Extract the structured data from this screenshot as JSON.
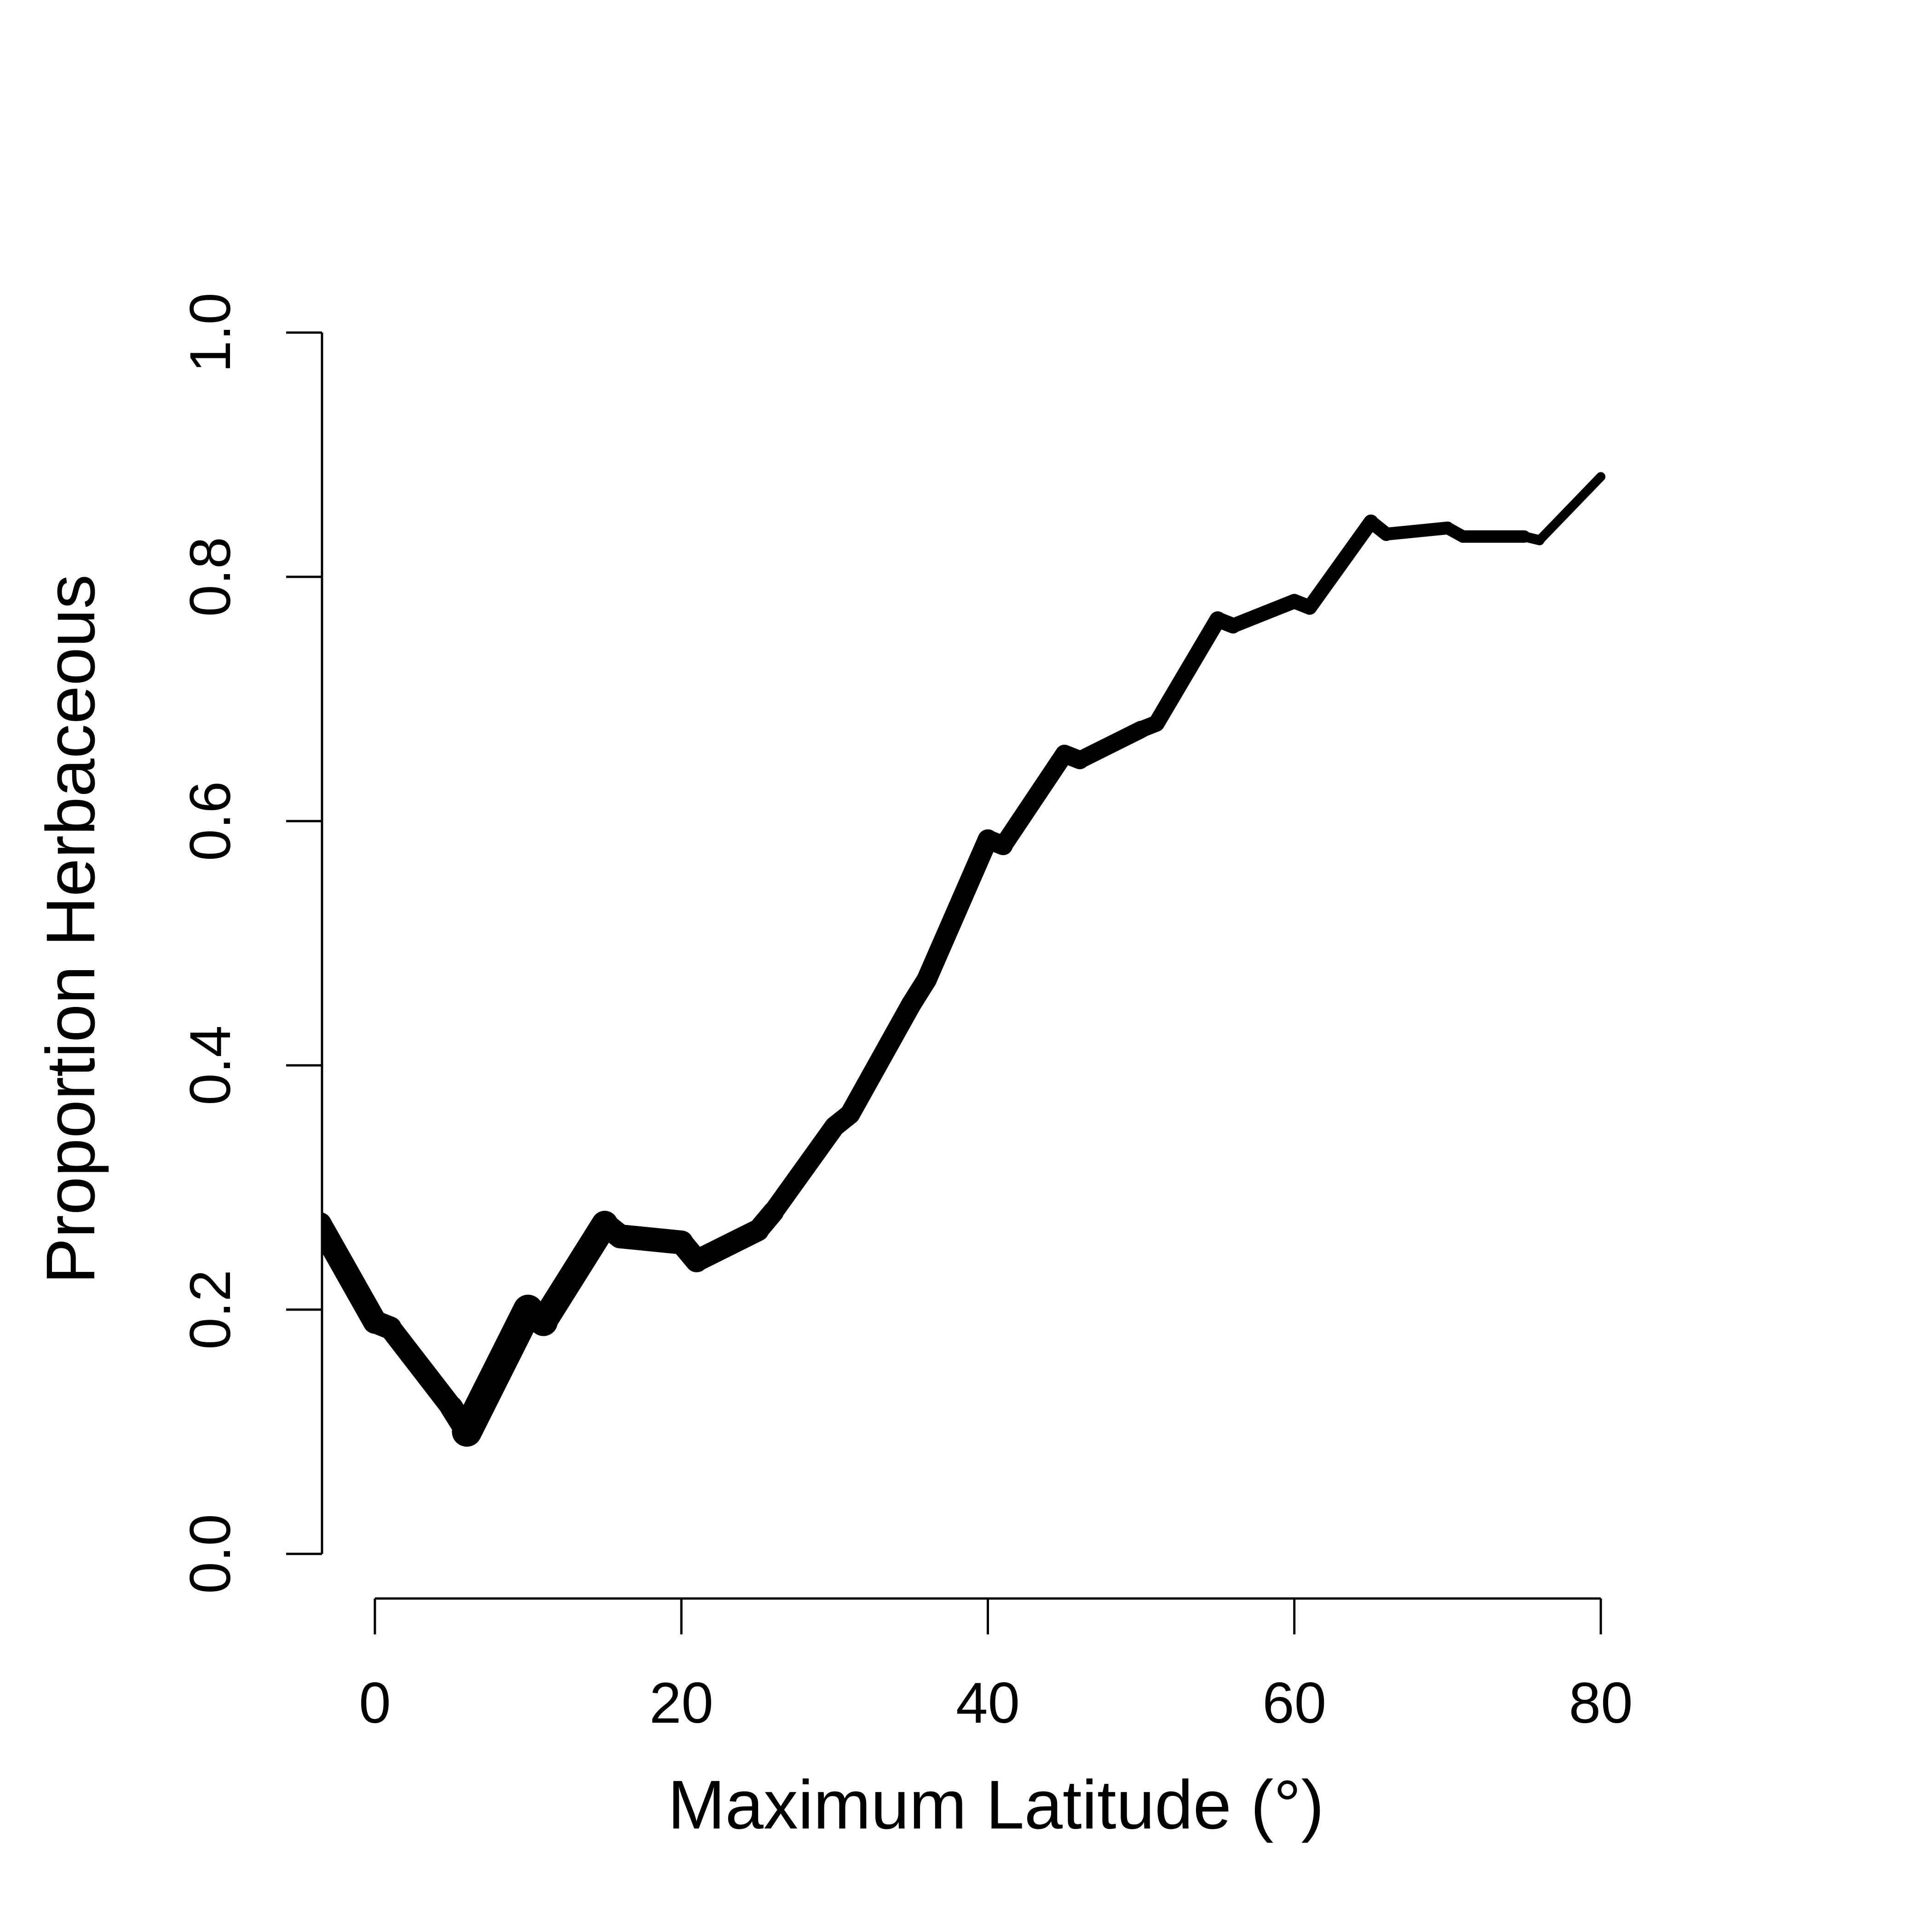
{
  "chart_data": {
    "type": "line",
    "title": "",
    "xlabel": "Maximum Latitude (°)",
    "ylabel": "Proportion Herbaceous",
    "xlim": [
      -4,
      82
    ],
    "ylim": [
      0,
      1
    ],
    "x_ticks": [
      "0",
      "20",
      "40",
      "60",
      "80"
    ],
    "y_ticks": [
      "0.0",
      "0.2",
      "0.4",
      "0.6",
      "0.8",
      "1.0"
    ],
    "grid": false,
    "legend": "none",
    "line_color": "#000000",
    "line_width_note": "line width decreases with latitude",
    "series": [
      {
        "x": [
          -3.6,
          0,
          1,
          5,
          6,
          10,
          11,
          15,
          16,
          20,
          21,
          25,
          26,
          30,
          31,
          35,
          36,
          40,
          41,
          45,
          46,
          50,
          51,
          55,
          56,
          60,
          61,
          65,
          66,
          70,
          71,
          75,
          76,
          80
        ],
        "y": [
          0.27,
          0.19,
          0.185,
          0.12,
          0.1,
          0.2,
          0.19,
          0.27,
          0.26,
          0.255,
          0.24,
          0.265,
          0.28,
          0.35,
          0.36,
          0.45,
          0.47,
          0.585,
          0.58,
          0.655,
          0.65,
          0.675,
          0.68,
          0.765,
          0.76,
          0.78,
          0.775,
          0.845,
          0.835,
          0.84,
          0.833,
          0.833,
          0.83,
          0.882
        ],
        "width": [
          52,
          50,
          48,
          50,
          65,
          62,
          58,
          52,
          52,
          50,
          48,
          46,
          44,
          44,
          44,
          44,
          44,
          42,
          40,
          40,
          38,
          36,
          36,
          34,
          32,
          32,
          32,
          30,
          28,
          27,
          27,
          22,
          20,
          18
        ]
      }
    ]
  }
}
